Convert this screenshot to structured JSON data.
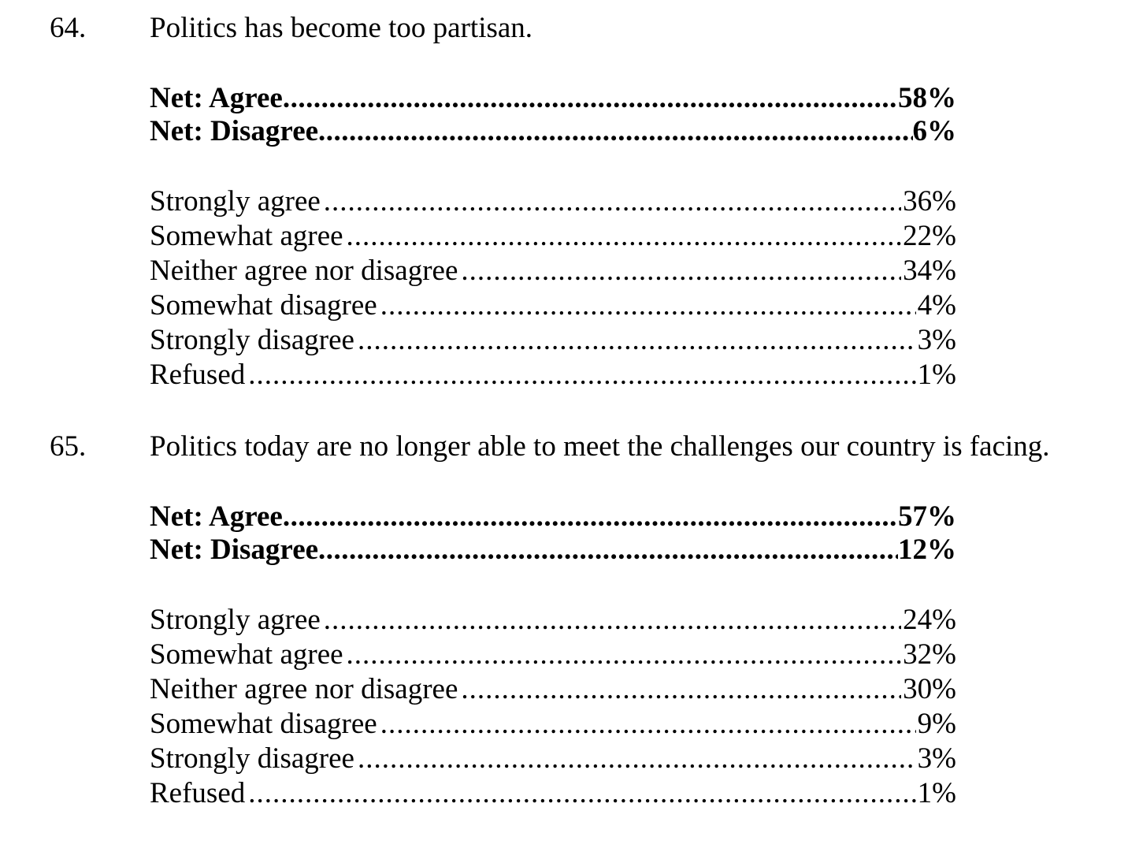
{
  "questions": [
    {
      "number": "64.",
      "text": "Politics has become too partisan.",
      "net": [
        {
          "label": "Net: Agree ",
          "value": "58%"
        },
        {
          "label": "Net: Disagree",
          "value": "6%"
        }
      ],
      "responses": [
        {
          "label": "Strongly agree ",
          "value": "36%"
        },
        {
          "label": "Somewhat agree ",
          "value": "22%"
        },
        {
          "label": "Neither agree nor disagree",
          "value": "34%"
        },
        {
          "label": "Somewhat disagree",
          "value": "4%"
        },
        {
          "label": "Strongly disagree",
          "value": "3%"
        },
        {
          "label": "Refused",
          "value": "1%"
        }
      ]
    },
    {
      "number": "65.",
      "text": "Politics today are no longer able to meet the challenges our country is facing.",
      "net": [
        {
          "label": "Net: Agree ",
          "value": "57%"
        },
        {
          "label": "Net: Disagree",
          "value": "12%"
        }
      ],
      "responses": [
        {
          "label": "Strongly agree ",
          "value": "24%"
        },
        {
          "label": "Somewhat agree ",
          "value": "32%"
        },
        {
          "label": "Neither agree nor disagree",
          "value": "30%"
        },
        {
          "label": "Somewhat disagree",
          "value": "9%"
        },
        {
          "label": "Strongly disagree",
          "value": "3%"
        },
        {
          "label": "Refused",
          "value": "1%"
        }
      ]
    }
  ]
}
